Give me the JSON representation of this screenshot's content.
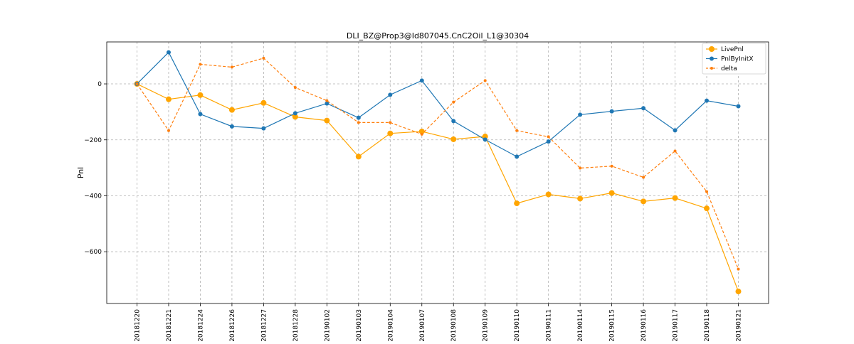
{
  "chart_data": {
    "type": "line",
    "title": "DLI_BZ@Prop3@Id807045.CnC2Oil_L1@30304",
    "xlabel": "",
    "ylabel": "Pnl",
    "categories": [
      "20181220",
      "20181221",
      "20181224",
      "20181226",
      "20181227",
      "20181228",
      "20190102",
      "20190103",
      "20190104",
      "20190107",
      "20190108",
      "20190109",
      "20190110",
      "20190111",
      "20190114",
      "20190115",
      "20190116",
      "20190117",
      "20190118",
      "20190121"
    ],
    "ylim": [
      -785,
      150
    ],
    "yticks": [
      0,
      -200,
      -400,
      -600
    ],
    "yticklabels": [
      "0",
      "−200",
      "−400",
      "−600"
    ],
    "grid": true,
    "legend_position": "top-right",
    "series": [
      {
        "name": "LivePnl",
        "color": "#ffa500",
        "linestyle": "solid",
        "marker": "large-circle",
        "values": [
          0,
          -55,
          -40,
          -93,
          -68,
          -118,
          -131,
          -260,
          -177,
          -170,
          -198,
          -188,
          -427,
          -395,
          -410,
          -390,
          -420,
          -408,
          -445,
          -742
        ]
      },
      {
        "name": "PnlByInitX",
        "color": "#1f77b4",
        "linestyle": "solid",
        "marker": "circle",
        "values": [
          0,
          113,
          -108,
          -152,
          -159,
          -105,
          -70,
          -121,
          -39,
          12,
          -133,
          -199,
          -260,
          -206,
          -110,
          -98,
          -87,
          -166,
          -60,
          -80
        ]
      },
      {
        "name": "delta",
        "color": "#ff7f0e",
        "linestyle": "dashed",
        "marker": "small-circle",
        "values": [
          0,
          -167,
          70,
          60,
          92,
          -13,
          -60,
          -138,
          -138,
          -180,
          -65,
          12,
          -167,
          -189,
          -301,
          -294,
          -334,
          -240,
          -385,
          -662
        ]
      }
    ]
  }
}
